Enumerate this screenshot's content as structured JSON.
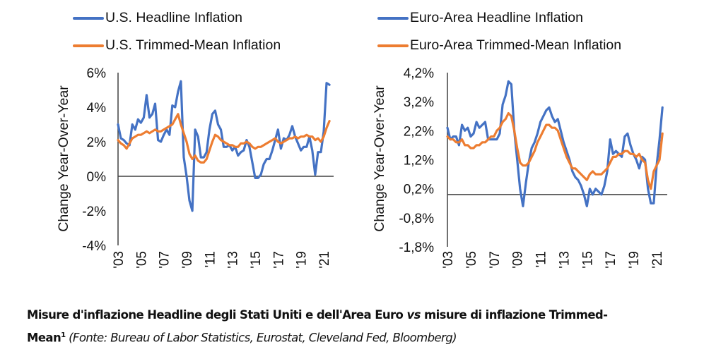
{
  "colors": {
    "headline": "#4472C4",
    "trimmed": "#ED7D31",
    "axis": "#404040"
  },
  "caption": {
    "part1": "Misure d'inflazione Headline degli Stati Uniti e dell'Area Euro ",
    "vs": "vs",
    "part2": " misure di inflazione Trimmed-",
    "part3": "Mean",
    "footnote": "1",
    "source": " (Fonte: Bureau of Labor Statistics, Eurostat, Cleveland Fed, Bloomberg)"
  },
  "chart_data": [
    {
      "type": "line",
      "title": "",
      "xlabel": "",
      "ylabel": "Change Year-Over-Year",
      "ylim": [
        -4,
        6
      ],
      "yticks": [
        -4,
        -2,
        0,
        2,
        4,
        6
      ],
      "ytick_labels": [
        "-4%",
        "-2%",
        "0%",
        "2%",
        "4%",
        "6%"
      ],
      "xlim": [
        2003,
        2021.9
      ],
      "xticks": [
        2003,
        2005,
        2007,
        2009,
        2011,
        2013,
        2015,
        2017,
        2019,
        2021
      ],
      "xtick_labels": [
        "'03",
        "'05",
        "'07",
        "'09",
        "'11",
        "'13",
        "'15",
        "'17",
        "'19",
        "'21"
      ],
      "baseline": 0,
      "grid": false,
      "legend": "top",
      "x_start": 2003,
      "x_step": 0.25,
      "series": [
        {
          "name": "U.S. Headline Inflation",
          "color_key": "headline",
          "values": [
            3.0,
            2.2,
            2.1,
            1.9,
            1.8,
            3.0,
            2.7,
            3.3,
            3.1,
            3.4,
            4.7,
            3.4,
            3.6,
            4.2,
            2.1,
            2.0,
            2.4,
            2.7,
            2.4,
            4.1,
            4.0,
            4.9,
            5.5,
            1.1,
            0.0,
            -1.4,
            -2.0,
            2.7,
            2.3,
            1.1,
            1.1,
            1.4,
            2.7,
            3.6,
            3.8,
            3.0,
            2.7,
            1.7,
            1.7,
            1.8,
            1.5,
            1.7,
            1.2,
            1.4,
            1.5,
            2.1,
            1.7,
            0.8,
            -0.1,
            -0.1,
            0.1,
            0.7,
            1.0,
            1.0,
            1.5,
            2.1,
            2.7,
            1.6,
            2.2,
            2.1,
            2.4,
            2.9,
            2.3,
            1.9,
            1.5,
            1.7,
            1.7,
            2.3,
            1.5,
            0.1,
            1.4,
            1.4,
            2.6,
            5.4,
            5.3
          ]
        },
        {
          "name": "U.S. Trimmed-Mean Inflation",
          "color_key": "trimmed",
          "values": [
            2.1,
            1.9,
            1.8,
            1.6,
            1.9,
            2.2,
            2.3,
            2.4,
            2.4,
            2.5,
            2.6,
            2.5,
            2.6,
            2.7,
            2.6,
            2.6,
            2.7,
            2.8,
            2.9,
            3.0,
            3.3,
            3.6,
            3.0,
            2.5,
            2.0,
            1.3,
            1.0,
            1.2,
            0.9,
            0.8,
            0.8,
            1.0,
            1.5,
            2.0,
            2.4,
            2.3,
            2.1,
            2.0,
            1.9,
            1.8,
            1.8,
            1.7,
            1.7,
            1.9,
            1.9,
            2.0,
            1.9,
            1.7,
            1.6,
            1.7,
            1.7,
            1.8,
            1.9,
            2.0,
            2.1,
            2.2,
            2.0,
            1.9,
            2.0,
            2.1,
            2.2,
            2.2,
            2.3,
            2.2,
            2.3,
            2.3,
            2.4,
            2.3,
            2.3,
            2.1,
            2.2,
            2.0,
            2.3,
            2.8,
            3.2
          ]
        }
      ]
    },
    {
      "type": "line",
      "title": "",
      "xlabel": "",
      "ylabel": "Change Year-Over-Year",
      "ylim": [
        -1.8,
        4.2
      ],
      "yticks": [
        -1.8,
        -0.8,
        0.2,
        1.2,
        2.2,
        3.2,
        4.2
      ],
      "ytick_labels": [
        "-1,8%",
        "-0,8%",
        "0,2%",
        "1,2%",
        "2,2%",
        "3,2%",
        "4,2%"
      ],
      "xlim": [
        2003,
        2021.9
      ],
      "xticks": [
        2003,
        2005,
        2007,
        2009,
        2011,
        2013,
        2015,
        2017,
        2019,
        2021
      ],
      "xtick_labels": [
        "'03",
        "'05",
        "'07",
        "'09",
        "'11",
        "'13",
        "'15",
        "'17",
        "'19",
        "'21"
      ],
      "baseline": 0,
      "grid": false,
      "legend": "top",
      "x_start": 2003,
      "x_step": 0.25,
      "series": [
        {
          "name": "Euro-Area Headline Inflation",
          "color_key": "headline",
          "values": [
            2.3,
            1.9,
            2.0,
            2.0,
            1.7,
            2.4,
            2.2,
            2.3,
            2.0,
            2.1,
            2.5,
            2.3,
            2.4,
            2.5,
            1.9,
            1.9,
            1.9,
            1.9,
            2.1,
            3.1,
            3.4,
            3.9,
            3.8,
            2.2,
            1.2,
            0.2,
            -0.4,
            0.4,
            1.1,
            1.6,
            1.8,
            2.1,
            2.5,
            2.7,
            2.9,
            3.0,
            2.7,
            2.5,
            2.6,
            2.2,
            1.8,
            1.5,
            1.2,
            0.8,
            0.6,
            0.5,
            0.3,
            0.0,
            -0.4,
            0.2,
            0.0,
            0.2,
            0.1,
            0.0,
            0.3,
            0.8,
            1.9,
            1.4,
            1.5,
            1.4,
            1.3,
            2.0,
            2.1,
            1.7,
            1.4,
            1.2,
            0.9,
            1.3,
            1.2,
            0.2,
            -0.3,
            -0.3,
            1.0,
            1.9,
            3.0
          ]
        },
        {
          "name": "Euro-Area Trimmed-Mean Inflation",
          "color_key": "trimmed",
          "values": [
            2.0,
            1.9,
            1.9,
            1.8,
            1.8,
            1.9,
            1.7,
            1.7,
            1.6,
            1.6,
            1.7,
            1.7,
            1.8,
            1.8,
            1.9,
            2.0,
            2.0,
            2.2,
            2.3,
            2.5,
            2.6,
            2.8,
            2.7,
            2.2,
            1.6,
            1.1,
            1.0,
            1.0,
            1.1,
            1.3,
            1.5,
            1.8,
            2.0,
            2.2,
            2.4,
            2.4,
            2.3,
            2.3,
            2.2,
            1.9,
            1.6,
            1.3,
            1.1,
            0.9,
            0.9,
            0.8,
            0.7,
            0.6,
            0.5,
            0.7,
            0.8,
            0.7,
            0.7,
            0.7,
            0.8,
            0.9,
            1.1,
            1.3,
            1.3,
            1.4,
            1.4,
            1.5,
            1.5,
            1.4,
            1.4,
            1.3,
            1.4,
            1.2,
            1.1,
            0.5,
            0.2,
            0.8,
            1.0,
            1.2,
            2.1
          ]
        }
      ]
    }
  ]
}
